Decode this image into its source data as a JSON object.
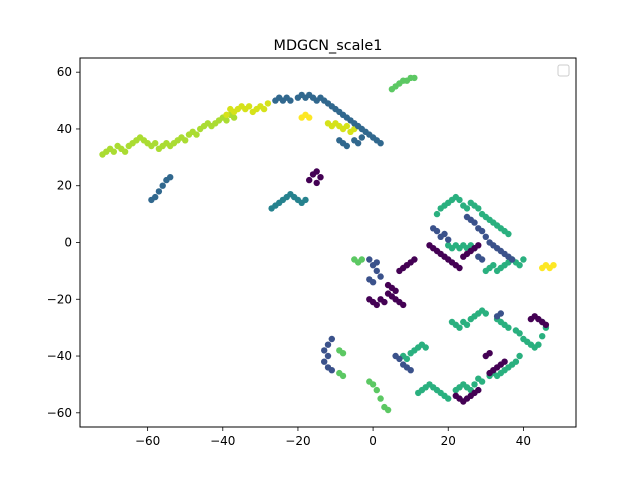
{
  "chart_data": {
    "type": "scatter",
    "title": "MDGCN_scale1",
    "xlabel": "",
    "ylabel": "",
    "xlim": [
      -78,
      54
    ],
    "ylim": [
      -65,
      65
    ],
    "xticks": [
      -60,
      -40,
      -20,
      0,
      20,
      40
    ],
    "yticks": [
      -60,
      -40,
      -20,
      0,
      20,
      40,
      60
    ],
    "grid": false,
    "legend": {
      "placement": "top-right",
      "entries": []
    },
    "colormap": [
      "#440154",
      "#472c7a",
      "#3b518b",
      "#2c718e",
      "#21908d",
      "#27ad81",
      "#5cc863",
      "#aadc32",
      "#fde725"
    ],
    "clusters": [
      {
        "color": "#aadc32",
        "points": [
          [
            -72,
            31
          ],
          [
            -71,
            32
          ],
          [
            -70,
            33
          ],
          [
            -69,
            32
          ],
          [
            -68,
            34
          ],
          [
            -67,
            33
          ],
          [
            -66,
            32
          ],
          [
            -65,
            34
          ],
          [
            -64,
            35
          ],
          [
            -63,
            36
          ],
          [
            -62,
            37
          ],
          [
            -61,
            36
          ],
          [
            -60,
            35
          ],
          [
            -59,
            34
          ],
          [
            -58,
            35
          ],
          [
            -57,
            33
          ],
          [
            -56,
            34
          ],
          [
            -55,
            35
          ],
          [
            -54,
            34
          ],
          [
            -53,
            35
          ],
          [
            -52,
            36
          ],
          [
            -51,
            37
          ],
          [
            -50,
            36
          ],
          [
            -49,
            38
          ],
          [
            -48,
            39
          ],
          [
            -47,
            38
          ],
          [
            -46,
            40
          ],
          [
            -45,
            41
          ],
          [
            -44,
            42
          ],
          [
            -43,
            41
          ],
          [
            -42,
            42
          ],
          [
            -41,
            43
          ],
          [
            -40,
            44
          ],
          [
            -39,
            43
          ],
          [
            -38,
            45
          ],
          [
            -37,
            44
          ]
        ]
      },
      {
        "color": "#d5e21a",
        "points": [
          [
            -39,
            45
          ],
          [
            -38,
            47
          ],
          [
            -37,
            46
          ],
          [
            -36,
            47
          ],
          [
            -35,
            48
          ],
          [
            -34,
            47
          ],
          [
            -33,
            48
          ],
          [
            -32,
            46
          ],
          [
            -31,
            47
          ],
          [
            -30,
            48
          ],
          [
            -29,
            47
          ],
          [
            -28,
            49
          ],
          [
            -12,
            42
          ],
          [
            -11,
            41
          ],
          [
            -10,
            42
          ],
          [
            -9,
            41
          ],
          [
            -8,
            40
          ],
          [
            -7,
            41
          ],
          [
            -6,
            39
          ],
          [
            -5,
            40
          ]
        ]
      },
      {
        "color": "#fde725",
        "points": [
          [
            -19,
            44
          ],
          [
            -18,
            45
          ],
          [
            -17,
            44
          ],
          [
            45,
            -9
          ],
          [
            46,
            -8
          ],
          [
            47,
            -9
          ],
          [
            48,
            -8
          ]
        ]
      },
      {
        "color": "#31688e",
        "points": [
          [
            -59,
            15
          ],
          [
            -58,
            16
          ],
          [
            -57,
            18
          ],
          [
            -56,
            20
          ],
          [
            -55,
            22
          ],
          [
            -54,
            23
          ],
          [
            -26,
            50
          ],
          [
            -25,
            51
          ],
          [
            -24,
            50
          ],
          [
            -23,
            51
          ],
          [
            -22,
            50
          ],
          [
            -20,
            51
          ],
          [
            -19,
            52
          ],
          [
            -18,
            51
          ],
          [
            -17,
            52
          ],
          [
            -16,
            51
          ],
          [
            -15,
            50
          ],
          [
            -14,
            51
          ],
          [
            -13,
            50
          ],
          [
            -12,
            49
          ],
          [
            -11,
            48
          ],
          [
            -10,
            47
          ],
          [
            -9,
            46
          ],
          [
            -8,
            45
          ],
          [
            -7,
            44
          ],
          [
            -6,
            43
          ],
          [
            -5,
            42
          ],
          [
            -4,
            41
          ],
          [
            -3,
            40
          ],
          [
            -2,
            39
          ],
          [
            -1,
            38
          ],
          [
            0,
            37
          ],
          [
            1,
            36
          ],
          [
            2,
            35
          ],
          [
            -9,
            36
          ],
          [
            -8,
            35
          ],
          [
            -7,
            34
          ],
          [
            -5,
            36
          ],
          [
            -4,
            35
          ],
          [
            -3,
            37
          ]
        ]
      },
      {
        "color": "#26828e",
        "points": [
          [
            -27,
            12
          ],
          [
            -26,
            13
          ],
          [
            -25,
            14
          ],
          [
            -24,
            15
          ],
          [
            -23,
            16
          ],
          [
            -22,
            17
          ],
          [
            -21,
            16
          ],
          [
            -20,
            15
          ],
          [
            -19,
            14
          ],
          [
            -18,
            15
          ]
        ]
      },
      {
        "color": "#5cc863",
        "points": [
          [
            5,
            54
          ],
          [
            6,
            55
          ],
          [
            7,
            56
          ],
          [
            8,
            57
          ],
          [
            9,
            57
          ],
          [
            10,
            58
          ],
          [
            11,
            58
          ],
          [
            -5,
            -6
          ],
          [
            -4,
            -7
          ],
          [
            -3,
            -6
          ],
          [
            -9,
            -46
          ],
          [
            -8,
            -47
          ],
          [
            -9,
            -38
          ],
          [
            -8,
            -39
          ],
          [
            -1,
            -49
          ],
          [
            0,
            -50
          ],
          [
            1,
            -52
          ],
          [
            2,
            -55
          ],
          [
            3,
            -58
          ],
          [
            4,
            -59
          ]
        ]
      },
      {
        "color": "#2ab07f",
        "points": [
          [
            17,
            10
          ],
          [
            18,
            12
          ],
          [
            19,
            13
          ],
          [
            20,
            14
          ],
          [
            21,
            15
          ],
          [
            22,
            16
          ],
          [
            23,
            15
          ],
          [
            24,
            13
          ],
          [
            25,
            12
          ],
          [
            26,
            14
          ],
          [
            27,
            13
          ],
          [
            28,
            12
          ],
          [
            29,
            10
          ],
          [
            30,
            9
          ],
          [
            31,
            8
          ],
          [
            32,
            7
          ],
          [
            33,
            6
          ],
          [
            34,
            5
          ],
          [
            35,
            4
          ],
          [
            36,
            3
          ],
          [
            20,
            -1
          ],
          [
            21,
            -2
          ],
          [
            22,
            -1
          ],
          [
            23,
            -2
          ],
          [
            24,
            -1
          ],
          [
            25,
            -2
          ],
          [
            26,
            -1
          ],
          [
            27,
            -2
          ],
          [
            30,
            -10
          ],
          [
            31,
            -9
          ],
          [
            32,
            -8
          ],
          [
            33,
            -10
          ],
          [
            34,
            -9
          ],
          [
            35,
            -8
          ],
          [
            36,
            -7
          ],
          [
            37,
            -6
          ],
          [
            38,
            -7
          ],
          [
            39,
            -8
          ],
          [
            40,
            -6
          ],
          [
            21,
            -28
          ],
          [
            22,
            -29
          ],
          [
            23,
            -30
          ],
          [
            24,
            -28
          ],
          [
            25,
            -29
          ],
          [
            26,
            -27
          ],
          [
            27,
            -26
          ],
          [
            28,
            -25
          ],
          [
            29,
            -24
          ],
          [
            30,
            -25
          ],
          [
            33,
            -27
          ],
          [
            34,
            -28
          ],
          [
            35,
            -29
          ],
          [
            36,
            -30
          ],
          [
            38,
            -31
          ],
          [
            39,
            -32
          ],
          [
            40,
            -34
          ],
          [
            41,
            -35
          ],
          [
            42,
            -36
          ],
          [
            43,
            -37
          ],
          [
            44,
            -36
          ],
          [
            45,
            -33
          ],
          [
            46,
            -30
          ],
          [
            45,
            -28
          ],
          [
            12,
            -53
          ],
          [
            13,
            -52
          ],
          [
            14,
            -51
          ],
          [
            15,
            -50
          ],
          [
            16,
            -51
          ],
          [
            17,
            -52
          ],
          [
            18,
            -53
          ],
          [
            19,
            -54
          ],
          [
            20,
            -55
          ],
          [
            22,
            -52
          ],
          [
            23,
            -51
          ],
          [
            24,
            -50
          ],
          [
            25,
            -51
          ],
          [
            26,
            -52
          ],
          [
            27,
            -50
          ],
          [
            28,
            -48
          ],
          [
            29,
            -49
          ],
          [
            31,
            -47
          ],
          [
            32,
            -46
          ],
          [
            33,
            -47
          ],
          [
            34,
            -46
          ],
          [
            35,
            -45
          ],
          [
            36,
            -44
          ],
          [
            37,
            -43
          ],
          [
            38,
            -42
          ],
          [
            39,
            -40
          ],
          [
            8,
            -40
          ],
          [
            9,
            -41
          ],
          [
            10,
            -39
          ],
          [
            11,
            -38
          ],
          [
            12,
            -37
          ],
          [
            13,
            -36
          ],
          [
            14,
            -37
          ]
        ]
      },
      {
        "color": "#3b528b",
        "points": [
          [
            -13,
            -38
          ],
          [
            -12,
            -36
          ],
          [
            -11,
            -34
          ],
          [
            -12,
            -40
          ],
          [
            -13,
            -42
          ],
          [
            -12,
            -44
          ],
          [
            -11,
            -45
          ],
          [
            -1,
            -6
          ],
          [
            0,
            -8
          ],
          [
            1,
            -10
          ],
          [
            2,
            -12
          ],
          [
            -1,
            -13
          ],
          [
            0,
            -14
          ],
          [
            1,
            -7
          ],
          [
            6,
            -40
          ],
          [
            7,
            -41
          ],
          [
            8,
            -43
          ],
          [
            9,
            -44
          ],
          [
            10,
            -45
          ],
          [
            16,
            5
          ],
          [
            17,
            4
          ],
          [
            18,
            2
          ],
          [
            19,
            3
          ],
          [
            20,
            1
          ],
          [
            28,
            -5
          ],
          [
            29,
            -6
          ],
          [
            33,
            -26
          ],
          [
            34,
            -25
          ],
          [
            25,
            9
          ],
          [
            26,
            8
          ],
          [
            27,
            7
          ],
          [
            28,
            5
          ],
          [
            29,
            4
          ],
          [
            30,
            2
          ],
          [
            31,
            0
          ],
          [
            32,
            -1
          ],
          [
            33,
            -2
          ],
          [
            34,
            -3
          ],
          [
            35,
            -4
          ],
          [
            36,
            -5
          ],
          [
            37,
            -6
          ]
        ]
      },
      {
        "color": "#440154",
        "points": [
          [
            -17,
            22
          ],
          [
            -16,
            24
          ],
          [
            -15,
            25
          ],
          [
            -14,
            23
          ],
          [
            -15,
            21
          ],
          [
            -1,
            -20
          ],
          [
            0,
            -21
          ],
          [
            1,
            -22
          ],
          [
            2,
            -20
          ],
          [
            3,
            -21
          ],
          [
            4,
            -18
          ],
          [
            5,
            -19
          ],
          [
            6,
            -20
          ],
          [
            7,
            -21
          ],
          [
            8,
            -22
          ],
          [
            4,
            -15
          ],
          [
            5,
            -16
          ],
          [
            6,
            -17
          ],
          [
            7,
            -10
          ],
          [
            8,
            -9
          ],
          [
            9,
            -8
          ],
          [
            10,
            -7
          ],
          [
            11,
            -6
          ],
          [
            15,
            -1
          ],
          [
            16,
            -2
          ],
          [
            17,
            -3
          ],
          [
            18,
            -4
          ],
          [
            19,
            -5
          ],
          [
            20,
            -6
          ],
          [
            21,
            -7
          ],
          [
            22,
            -8
          ],
          [
            23,
            -9
          ],
          [
            24,
            -5
          ],
          [
            25,
            -4
          ],
          [
            26,
            -3
          ],
          [
            27,
            -2
          ],
          [
            28,
            -1
          ],
          [
            31,
            -46
          ],
          [
            32,
            -45
          ],
          [
            33,
            -44
          ],
          [
            34,
            -43
          ],
          [
            35,
            -42
          ],
          [
            30,
            -40
          ],
          [
            31,
            -39
          ],
          [
            28,
            -52
          ],
          [
            27,
            -53
          ],
          [
            26,
            -54
          ],
          [
            25,
            -55
          ],
          [
            24,
            -56
          ],
          [
            23,
            -55
          ],
          [
            22,
            -54
          ],
          [
            42,
            -27
          ],
          [
            43,
            -26
          ],
          [
            44,
            -27
          ],
          [
            45,
            -28
          ],
          [
            46,
            -29
          ]
        ]
      }
    ]
  }
}
